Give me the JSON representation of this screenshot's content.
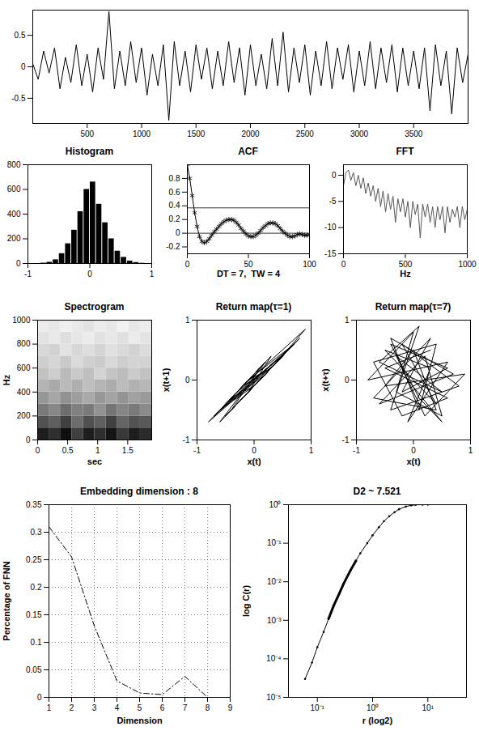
{
  "chart_data": [
    {
      "type": "line",
      "color": "#000000",
      "x": [
        0,
        50,
        100,
        150,
        200,
        250,
        300,
        350,
        400,
        450,
        500,
        550,
        600,
        650,
        700,
        750,
        800,
        850,
        900,
        950,
        1000,
        1050,
        1100,
        1150,
        1200,
        1250,
        1300,
        1350,
        1400,
        1450,
        1500,
        1550,
        1600,
        1650,
        1700,
        1750,
        1800,
        1850,
        1900,
        1950,
        2000,
        2050,
        2100,
        2150,
        2200,
        2250,
        2300,
        2350,
        2400,
        2450,
        2500,
        2550,
        2600,
        2650,
        2700,
        2750,
        2800,
        2850,
        2900,
        2950,
        3000,
        3050,
        3100,
        3150,
        3200,
        3250,
        3300,
        3350,
        3400,
        3450,
        3500,
        3550,
        3600,
        3650,
        3700,
        3750,
        3800,
        3850,
        3900,
        3950,
        4000
      ],
      "values": [
        0.05,
        -0.2,
        0.25,
        -0.1,
        0.3,
        -0.35,
        0.15,
        -0.25,
        0.35,
        -0.3,
        0.2,
        -0.4,
        0.3,
        -0.2,
        0.88,
        -0.35,
        0.25,
        -0.3,
        0.4,
        -0.25,
        0.3,
        -0.45,
        0.2,
        -0.3,
        0.35,
        -0.85,
        0.4,
        -0.3,
        0.25,
        -0.4,
        0.35,
        -0.2,
        0.3,
        -0.35,
        0.25,
        -0.3,
        0.4,
        -0.25,
        0.3,
        -0.45,
        0.35,
        -0.3,
        0.2,
        -0.35,
        0.45,
        -0.3,
        0.55,
        -0.4,
        0.3,
        -0.25,
        0.35,
        -0.45,
        0.25,
        -0.3,
        0.4,
        -0.35,
        0.3,
        -0.2,
        0.35,
        -0.4,
        0.25,
        -0.3,
        0.4,
        -0.35,
        0.3,
        -0.25,
        0.35,
        -0.4,
        0.3,
        -0.3,
        0.25,
        -0.35,
        0.3,
        -0.7,
        0.35,
        -0.3,
        0.25,
        -0.75,
        0.3,
        -0.25,
        0.2
      ],
      "xlim": [
        0,
        4000
      ],
      "xticks": [
        500,
        1000,
        1500,
        2000,
        2500,
        3000,
        3500
      ],
      "ylim": [
        -0.9,
        0.9
      ],
      "yticks": [
        -0.5,
        0,
        0.5
      ]
    },
    {
      "type": "histogram",
      "title": "Histogram",
      "color": "#000000",
      "bins": [
        -1,
        -0.9,
        -0.8,
        -0.7,
        -0.6,
        -0.5,
        -0.4,
        -0.3,
        -0.2,
        -0.1,
        0,
        0.1,
        0.2,
        0.3,
        0.4,
        0.5,
        0.6,
        0.7,
        0.8,
        0.9,
        1
      ],
      "values": [
        0,
        0,
        3,
        10,
        30,
        80,
        160,
        270,
        420,
        600,
        660,
        480,
        330,
        200,
        100,
        50,
        20,
        8,
        2,
        0
      ],
      "xlim": [
        -1,
        1
      ],
      "xticks": [
        -1,
        0,
        1
      ],
      "ylim": [
        0,
        800
      ],
      "yticks": [
        0,
        200,
        400,
        600,
        800
      ]
    },
    {
      "type": "line",
      "title": "ACF",
      "xlabel": "DT = 7,  TW = 4",
      "color": "#000000",
      "marker": "asterisk",
      "x": [
        0,
        2,
        4,
        6,
        8,
        10,
        12,
        14,
        16,
        18,
        20,
        22,
        24,
        26,
        28,
        30,
        32,
        34,
        36,
        38,
        40,
        42,
        44,
        46,
        48,
        50,
        52,
        54,
        56,
        58,
        60,
        62,
        64,
        66,
        68,
        70,
        72,
        74,
        76,
        78,
        80,
        82,
        84,
        86,
        88,
        90,
        92,
        94,
        96,
        98,
        100
      ],
      "values": [
        1.0,
        0.8,
        0.55,
        0.3,
        0.1,
        -0.05,
        -0.12,
        -0.14,
        -0.12,
        -0.08,
        -0.03,
        0.02,
        0.06,
        0.1,
        0.14,
        0.17,
        0.19,
        0.2,
        0.2,
        0.19,
        0.16,
        0.12,
        0.07,
        0.03,
        -0.01,
        -0.04,
        -0.05,
        -0.05,
        -0.03,
        0.0,
        0.04,
        0.08,
        0.11,
        0.14,
        0.15,
        0.15,
        0.14,
        0.11,
        0.07,
        0.03,
        0.0,
        -0.03,
        -0.05,
        -0.05,
        -0.04,
        -0.02,
        -0.01,
        -0.02,
        -0.03,
        -0.03,
        -0.02
      ],
      "hlines": [
        0.37,
        0
      ],
      "xlim": [
        0,
        100
      ],
      "xticks": [
        0,
        50,
        100
      ],
      "ylim": [
        -0.3,
        1
      ],
      "yticks": [
        -0.2,
        0,
        0.2,
        0.4,
        0.6,
        0.8
      ]
    },
    {
      "type": "line",
      "title": "FFT",
      "xlabel": "Hz",
      "color": "#555555",
      "x": [
        0,
        20,
        40,
        60,
        80,
        100,
        120,
        140,
        160,
        180,
        200,
        220,
        240,
        260,
        280,
        300,
        320,
        340,
        360,
        380,
        400,
        420,
        440,
        460,
        480,
        500,
        520,
        540,
        560,
        580,
        600,
        620,
        640,
        660,
        680,
        700,
        720,
        740,
        760,
        780,
        800,
        820,
        840,
        860,
        880,
        900,
        920,
        940,
        960,
        980,
        1000
      ],
      "values": [
        -2,
        0.5,
        1,
        -1,
        0.5,
        -2,
        0,
        -2.5,
        -0.5,
        -3.5,
        -1.5,
        -4,
        -2,
        -5,
        -2.5,
        -6,
        -3,
        -7,
        -3.5,
        -6.5,
        -4,
        -9,
        -4.5,
        -7,
        -4.5,
        -8,
        -5,
        -10,
        -5,
        -7.5,
        -5.5,
        -12,
        -5.5,
        -8,
        -5.5,
        -9,
        -6,
        -10,
        -6,
        -8.5,
        -6,
        -11,
        -6,
        -9,
        -6.5,
        -8,
        -6,
        -10,
        -6,
        -8.5,
        -6.5
      ],
      "xlim": [
        0,
        1000
      ],
      "xticks": [
        0,
        500,
        1000
      ],
      "ylim": [
        -15,
        2
      ],
      "yticks": [
        -15,
        -10,
        -5,
        0
      ]
    },
    {
      "type": "heatmap",
      "title": "Spectrogram",
      "xlabel": "sec",
      "ylabel": "Hz",
      "color": "greys",
      "x_edges": [
        0,
        0.19,
        0.38,
        0.57,
        0.76,
        0.95,
        1.14,
        1.33,
        1.52,
        1.71,
        1.9
      ],
      "y_edges": [
        0,
        100,
        200,
        300,
        400,
        500,
        600,
        700,
        800,
        900,
        1000
      ],
      "cells": [
        [
          0,
          -0.5,
          0.5,
          -1,
          0,
          -0.5,
          0.3,
          -0.8,
          0,
          -0.4
        ],
        [
          -1.5,
          -2,
          -1,
          -2.5,
          -1.5,
          -2,
          -1,
          -2.2,
          -1.6,
          -1.8
        ],
        [
          -3,
          -3.5,
          -2.5,
          -3.2,
          -3,
          -3.8,
          -2.8,
          -3.4,
          -3,
          -3.6
        ],
        [
          -4,
          -4.5,
          -3.8,
          -4.2,
          -4.6,
          -4,
          -4.4,
          -3.9,
          -4.3,
          -4.1
        ],
        [
          -5,
          -4.6,
          -5.2,
          -4.8,
          -5.4,
          -5,
          -4.7,
          -5.3,
          -4.9,
          -5.1
        ],
        [
          -5.5,
          -6,
          -5.2,
          -5.8,
          -5.4,
          -6.2,
          -5.6,
          -5.3,
          -5.9,
          -5.5
        ],
        [
          -6,
          -6.4,
          -5.8,
          -6.6,
          -6.1,
          -5.9,
          -6.5,
          -6,
          -6.3,
          -6.2
        ],
        [
          -6.5,
          -6.2,
          -7,
          -6.4,
          -6.8,
          -6.3,
          -6.9,
          -6.6,
          -6.2,
          -6.7
        ],
        [
          -7,
          -7.4,
          -6.8,
          -7.2,
          -7.6,
          -7,
          -7.3,
          -6.9,
          -7.5,
          -7.1
        ],
        [
          -7.5,
          -7.2,
          -7.8,
          -7.4,
          -7,
          -7.6,
          -7.3,
          -7.9,
          -7.2,
          -7.6
        ]
      ],
      "zlim": [
        -9,
        1
      ],
      "xlim": [
        0,
        1.9
      ],
      "xticks": [
        0,
        0.5,
        1,
        1.5
      ],
      "ylim": [
        0,
        1000
      ],
      "yticks": [
        0,
        200,
        400,
        600,
        800,
        1000
      ]
    },
    {
      "type": "line",
      "title": "Return map(τ=1)",
      "xlabel": "x(t)",
      "ylabel": "x(t+1)",
      "color": "#000000",
      "x": [
        0.1,
        -0.2,
        0.3,
        -0.4,
        0.5,
        -0.3,
        0.2,
        -0.6,
        0.7,
        -0.5,
        0.4,
        0.9,
        -0.2,
        0.1,
        -0.7,
        0.6,
        -0.1,
        0.3,
        -0.4,
        0.0,
        0.8,
        -0.3,
        0.5,
        -0.6,
        0.2,
        -0.8,
        0.4,
        -0.2,
        0.6,
        -0.5,
        0.3,
        -0.1,
        0.7,
        -0.4,
        0.1,
        -0.3,
        0.5,
        0.0,
        -0.6,
        0.2
      ],
      "values": [
        0.2,
        -0.1,
        0.2,
        -0.5,
        0.4,
        -0.2,
        0.3,
        -0.5,
        0.6,
        -0.6,
        0.3,
        0.85,
        -0.1,
        0.2,
        -0.6,
        0.5,
        -0.2,
        0.4,
        -0.3,
        -0.1,
        0.7,
        -0.4,
        0.4,
        -0.7,
        0.3,
        -0.7,
        0.3,
        -0.3,
        0.5,
        -0.4,
        0.2,
        0.0,
        0.6,
        -0.5,
        0.2,
        -0.2,
        0.4,
        -0.1,
        -0.5,
        0.1
      ],
      "xlim": [
        -1,
        1
      ],
      "xticks": [
        -1,
        0,
        1
      ],
      "ylim": [
        -1,
        1
      ],
      "yticks": [
        -1,
        0,
        1
      ]
    },
    {
      "type": "line",
      "title": "Return map(τ=7)",
      "xlabel": "x(t)",
      "ylabel": "x(t+τ)",
      "color": "#000000",
      "x": [
        0.3,
        -0.5,
        0.6,
        -0.2,
        -0.7,
        0.4,
        0.1,
        -0.4,
        0.7,
        -0.6,
        0.2,
        0.5,
        -0.3,
        0.0,
        -0.8,
        0.6,
        -0.1,
        0.3,
        -0.5,
        0.4,
        -0.2,
        0.8,
        -0.4,
        0.1,
        -0.6,
        0.5,
        -0.3,
        0.2,
        0.9,
        -0.5,
        0.0,
        0.4,
        -0.7,
        0.3,
        -0.2,
        0.6,
        -0.4,
        0.1,
        0.5,
        -0.1
      ],
      "values": [
        0.5,
        0.2,
        -0.3,
        -0.6,
        0.3,
        0.6,
        -0.5,
        0.7,
        0.1,
        -0.4,
        0.4,
        -0.6,
        -0.2,
        0.8,
        0.0,
        0.3,
        -0.7,
        0.2,
        0.5,
        -0.4,
        0.6,
        -0.1,
        -0.5,
        0.9,
        0.3,
        -0.2,
        0.4,
        -0.6,
        0.1,
        -0.1,
        0.5,
        -0.5,
        -0.3,
        0.7,
        -0.2,
        0.2,
        0.6,
        -0.3,
        -0.7,
        0.0
      ],
      "xlim": [
        -1,
        1
      ],
      "xticks": [
        -1,
        0,
        1
      ],
      "ylim": [
        -1,
        1
      ],
      "yticks": [
        -1,
        0,
        1
      ]
    },
    {
      "type": "line",
      "title": "Embedding dimension : 8",
      "xlabel": "Dimension",
      "ylabel": "Percentage of FNN",
      "color": "#000000",
      "line_style": "dashdot",
      "grid": true,
      "x": [
        1,
        2,
        3,
        4,
        5,
        6,
        7,
        8
      ],
      "values": [
        0.31,
        0.255,
        0.13,
        0.03,
        0.008,
        0.005,
        0.038,
        0
      ],
      "xlim": [
        1,
        9
      ],
      "xticks": [
        1,
        2,
        3,
        4,
        5,
        6,
        7,
        8,
        9
      ],
      "ylim": [
        0,
        0.35
      ],
      "yticks": [
        0,
        0.05,
        0.1,
        0.15,
        0.2,
        0.25,
        0.3,
        0.35
      ]
    },
    {
      "type": "line",
      "title": "D2 ~ 7.521",
      "xlabel": "r (log2)",
      "ylabel": "log C(r)",
      "log": true,
      "series": [
        {
          "color": "#000000",
          "marker": "circle",
          "line_style": "solid",
          "x": [
            0.06,
            0.08,
            0.1,
            0.13,
            0.16,
            0.2,
            0.25,
            0.3,
            0.4,
            0.5,
            0.6,
            0.8,
            1,
            1.3,
            1.6,
            2,
            2.5,
            3,
            4,
            5,
            6,
            8,
            10
          ],
          "values": [
            3e-05,
            8e-05,
            0.0002,
            0.0005,
            0.0011,
            0.0025,
            0.005,
            0.009,
            0.02,
            0.035,
            0.055,
            0.1,
            0.16,
            0.26,
            0.37,
            0.5,
            0.64,
            0.76,
            0.9,
            0.96,
            0.99,
            1,
            1
          ]
        },
        {
          "color": "#000000",
          "line_style": "bold",
          "x": [
            0.16,
            0.2,
            0.25,
            0.3,
            0.4,
            0.5
          ],
          "values": [
            0.0011,
            0.0025,
            0.005,
            0.009,
            0.02,
            0.035
          ]
        }
      ],
      "xlim": [
        0.03,
        50
      ],
      "xticks": [
        {
          "value": 0.1,
          "label": "10⁻¹"
        },
        {
          "value": 1,
          "label": "10⁰"
        },
        {
          "value": 10,
          "label": "10¹"
        }
      ],
      "ylim": [
        1e-05,
        1
      ],
      "yticks": [
        {
          "value": 1e-05,
          "label": "10⁻⁵"
        },
        {
          "value": 0.0001,
          "label": "10⁻⁴"
        },
        {
          "value": 0.001,
          "label": "10⁻³"
        },
        {
          "value": 0.01,
          "label": "10⁻²"
        },
        {
          "value": 0.1,
          "label": "10⁻¹"
        },
        {
          "value": 1,
          "label": "10⁰"
        }
      ]
    }
  ]
}
